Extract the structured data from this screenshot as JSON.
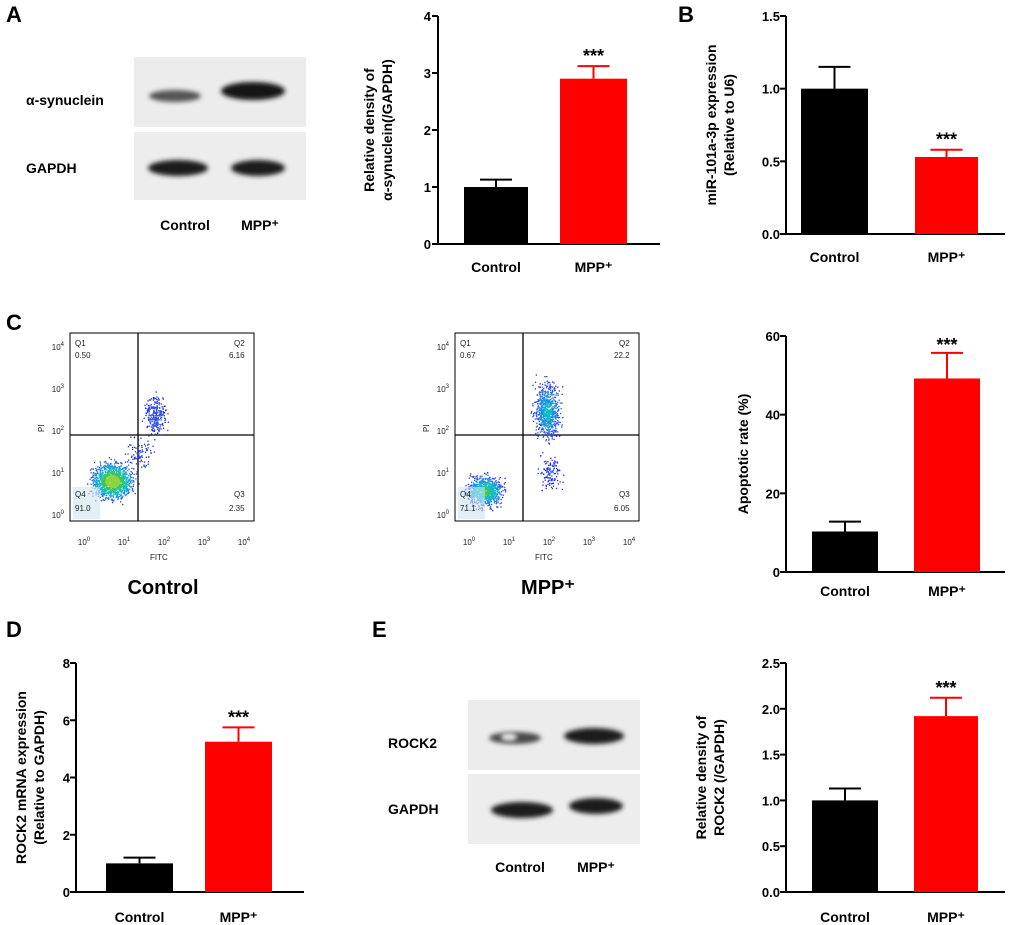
{
  "panels": {
    "a": "A",
    "b": "B",
    "c": "C",
    "d": "D",
    "e": "E"
  },
  "blot_a": {
    "rows": [
      "α-synuclein",
      "GAPDH"
    ],
    "lanes": [
      "Control",
      "MPP⁺"
    ]
  },
  "blot_e": {
    "rows": [
      "ROCK2",
      "GAPDH"
    ],
    "lanes": [
      "Control",
      "MPP⁺"
    ]
  },
  "flow": {
    "control": {
      "title": "Control",
      "q1_label": "Q1",
      "q1": "0.50",
      "q2_label": "Q2",
      "q2": "6.16",
      "q3_label": "Q3",
      "q3": "2.35",
      "q4_label": "Q4",
      "q4": "91.0"
    },
    "mpp": {
      "title": "MPP⁺",
      "q1_label": "Q1",
      "q1": "0.67",
      "q2_label": "Q2",
      "q2": "22.2",
      "q3_label": "Q3",
      "q3": "6.05",
      "q4_label": "Q4",
      "q4": "71.1"
    },
    "xlabel": "FITC",
    "ylabel": "PI",
    "ticks": [
      "10",
      "10",
      "10",
      "10",
      "10"
    ],
    "tick_exp": [
      "0",
      "1",
      "2",
      "3",
      "4"
    ]
  },
  "colors": {
    "control": "#000000",
    "mpp": "#ff0000"
  },
  "chart_data": [
    {
      "id": "A",
      "type": "bar",
      "categories": [
        "Control",
        "MPP⁺"
      ],
      "values": [
        1.0,
        2.9
      ],
      "errors": [
        0.13,
        0.22
      ],
      "ylabel_lines": [
        "Relative density of",
        "α-synuclein(/GAPDH)"
      ],
      "ylim": [
        0,
        4
      ],
      "yticks": [
        0,
        1,
        2,
        3,
        4
      ],
      "tick_labels": [
        "0",
        "1",
        "2",
        "3",
        "4"
      ],
      "significance": "***"
    },
    {
      "id": "B",
      "type": "bar",
      "categories": [
        "Control",
        "MPP⁺"
      ],
      "values": [
        1.0,
        0.53
      ],
      "errors": [
        0.15,
        0.05
      ],
      "ylabel_lines": [
        "miR-101a-3p expression",
        "(Relative to U6)"
      ],
      "ylim": [
        0,
        1.5
      ],
      "yticks": [
        0,
        0.5,
        1.0,
        1.5
      ],
      "tick_labels": [
        "0.0",
        "0.5",
        "1.0",
        "1.5"
      ],
      "significance": "***"
    },
    {
      "id": "C",
      "type": "bar",
      "categories": [
        "Control",
        "MPP⁺"
      ],
      "values": [
        10.3,
        49.2
      ],
      "errors": [
        2.5,
        6.5
      ],
      "ylabel_lines": [
        "Apoptotic rate (%)"
      ],
      "ylim": [
        0,
        60
      ],
      "yticks": [
        0,
        20,
        40,
        60
      ],
      "tick_labels": [
        "0",
        "20",
        "40",
        "60"
      ],
      "significance": "***"
    },
    {
      "id": "D",
      "type": "bar",
      "categories": [
        "Control",
        "MPP⁺"
      ],
      "values": [
        1.0,
        5.25
      ],
      "errors": [
        0.2,
        0.5
      ],
      "ylabel_lines": [
        "ROCK2 mRNA expression",
        "(Relative to GAPDH)"
      ],
      "ylim": [
        0,
        8
      ],
      "yticks": [
        0,
        2,
        4,
        6,
        8
      ],
      "tick_labels": [
        "0",
        "2",
        "4",
        "6",
        "8"
      ],
      "significance": "***"
    },
    {
      "id": "E",
      "type": "bar",
      "categories": [
        "Control",
        "MPP⁺"
      ],
      "values": [
        1.0,
        1.92
      ],
      "errors": [
        0.13,
        0.2
      ],
      "ylabel_lines": [
        "Relative density of",
        "ROCK2 (/GAPDH)"
      ],
      "ylim": [
        0,
        2.5
      ],
      "yticks": [
        0,
        0.5,
        1.0,
        1.5,
        2.0,
        2.5
      ],
      "tick_labels": [
        "0.0",
        "0.5",
        "1.0",
        "1.5",
        "2.0",
        "2.5"
      ],
      "significance": "***"
    }
  ]
}
